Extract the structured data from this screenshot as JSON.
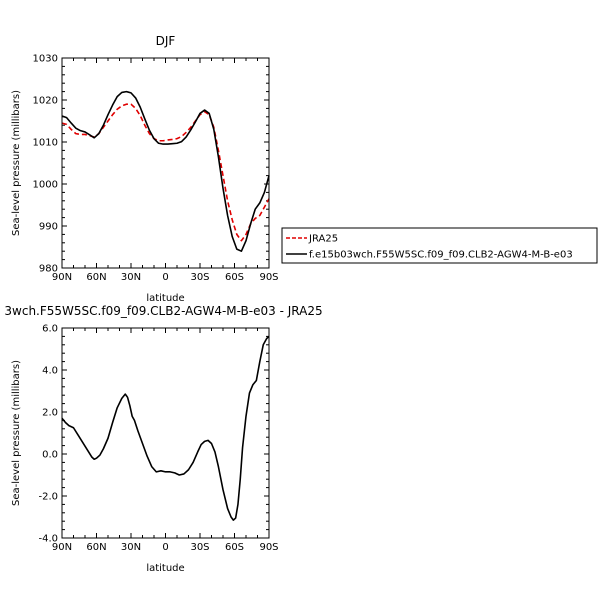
{
  "chart_data": [
    {
      "type": "line",
      "title": "DJF",
      "xlabel": "latitude",
      "ylabel": "Sea-level pressure (millibars)",
      "xlim": [
        90,
        -90
      ],
      "ylim": [
        980,
        1030
      ],
      "x_ticks": [
        {
          "value": 90,
          "label": "90N"
        },
        {
          "value": 60,
          "label": "60N"
        },
        {
          "value": 30,
          "label": "30N"
        },
        {
          "value": 0,
          "label": "0"
        },
        {
          "value": -30,
          "label": "30S"
        },
        {
          "value": -60,
          "label": "60S"
        },
        {
          "value": -90,
          "label": "90S"
        }
      ],
      "y_ticks": [
        {
          "value": 980,
          "label": "980"
        },
        {
          "value": 990,
          "label": "990"
        },
        {
          "value": 1000,
          "label": "1000"
        },
        {
          "value": 1010,
          "label": "1010"
        },
        {
          "value": 1020,
          "label": "1020"
        },
        {
          "value": 1030,
          "label": "1030"
        }
      ],
      "legend_position": "right",
      "series": [
        {
          "name": "JRA25",
          "color": "#e00000",
          "dash": "dashed",
          "x": [
            90,
            86,
            82,
            78,
            74,
            70,
            66,
            62,
            58,
            54,
            50,
            46,
            42,
            38,
            34,
            30,
            26,
            22,
            18,
            14,
            10,
            6,
            2,
            -2,
            -6,
            -10,
            -14,
            -18,
            -22,
            -26,
            -30,
            -34,
            -38,
            -42,
            -46,
            -50,
            -54,
            -58,
            -62,
            -66,
            -70,
            -74,
            -78,
            -82,
            -86,
            -90
          ],
          "y": [
            1014.5,
            1014.2,
            1013.0,
            1012.0,
            1011.8,
            1011.8,
            1011.5,
            1011.2,
            1012.0,
            1013.5,
            1015.0,
            1016.5,
            1017.8,
            1018.6,
            1019.0,
            1019.0,
            1018.0,
            1016.3,
            1014.0,
            1012.0,
            1010.8,
            1010.3,
            1010.3,
            1010.5,
            1010.6,
            1010.8,
            1011.3,
            1012.3,
            1013.5,
            1015.0,
            1016.5,
            1017.2,
            1016.5,
            1013.5,
            1008.0,
            1002.0,
            996.0,
            991.5,
            988.0,
            986.5,
            988.0,
            990.5,
            991.8,
            992.5,
            994.5,
            996.5
          ]
        },
        {
          "name": "f.e15b03wch.F55W5SC.f09_f09.CLB2-AGW4-M-B-e03",
          "color": "#000000",
          "dash": "solid",
          "x": [
            90,
            86,
            82,
            78,
            74,
            70,
            66,
            62,
            58,
            54,
            50,
            46,
            42,
            38,
            34,
            30,
            26,
            22,
            18,
            14,
            10,
            6,
            2,
            -2,
            -6,
            -10,
            -14,
            -18,
            -22,
            -26,
            -30,
            -34,
            -38,
            -42,
            -46,
            -50,
            -54,
            -58,
            -62,
            -66,
            -70,
            -74,
            -78,
            -82,
            -86,
            -90
          ],
          "y": [
            1016.2,
            1015.8,
            1014.5,
            1013.3,
            1012.7,
            1012.4,
            1011.7,
            1011.0,
            1012.0,
            1014.0,
            1016.5,
            1018.8,
            1020.8,
            1021.8,
            1022.0,
            1021.7,
            1020.5,
            1018.3,
            1015.5,
            1012.8,
            1010.8,
            1009.7,
            1009.5,
            1009.5,
            1009.6,
            1009.7,
            1010.1,
            1011.2,
            1012.9,
            1014.8,
            1016.8,
            1017.6,
            1016.8,
            1013.0,
            1006.5,
            999.0,
            992.5,
            987.5,
            984.5,
            984.0,
            986.5,
            990.5,
            994.0,
            995.5,
            998.0,
            1002.0
          ]
        }
      ]
    },
    {
      "type": "line",
      "title": "3wch.F55W5SC.f09_f09.CLB2-AGW4-M-B-e03 - JRA25",
      "xlabel": "latitude",
      "ylabel": "Sea-level pressure (millibars)",
      "xlim": [
        90,
        -90
      ],
      "ylim": [
        -4,
        6
      ],
      "x_ticks": [
        {
          "value": 90,
          "label": "90N"
        },
        {
          "value": 60,
          "label": "60N"
        },
        {
          "value": 30,
          "label": "30N"
        },
        {
          "value": 0,
          "label": "0"
        },
        {
          "value": -30,
          "label": "30S"
        },
        {
          "value": -60,
          "label": "60S"
        },
        {
          "value": -90,
          "label": "90S"
        }
      ],
      "y_ticks": [
        {
          "value": -4,
          "label": "-4.0"
        },
        {
          "value": -2,
          "label": "-2.0"
        },
        {
          "value": 0,
          "label": "0.0"
        },
        {
          "value": 2,
          "label": "2.0"
        },
        {
          "value": 4,
          "label": "4.0"
        },
        {
          "value": 6,
          "label": "6.0"
        }
      ],
      "series": [
        {
          "color": "#000000",
          "dash": "solid",
          "x": [
            90,
            87,
            84,
            80,
            76,
            72,
            68,
            64,
            62,
            60,
            57,
            54,
            50,
            46,
            42,
            38,
            35,
            33,
            31,
            29,
            27,
            24,
            20,
            16,
            12,
            8,
            4,
            0,
            -4,
            -8,
            -12,
            -16,
            -20,
            -24,
            -28,
            -31,
            -34,
            -37,
            -40,
            -43,
            -46,
            -50,
            -54,
            -57,
            -59,
            -61,
            -63,
            -65,
            -67,
            -70,
            -73,
            -76,
            -79,
            -82,
            -85,
            -88,
            -90
          ],
          "y": [
            1.7,
            1.5,
            1.35,
            1.25,
            0.9,
            0.55,
            0.2,
            -0.15,
            -0.25,
            -0.2,
            -0.05,
            0.25,
            0.75,
            1.5,
            2.2,
            2.65,
            2.85,
            2.7,
            2.3,
            1.8,
            1.6,
            1.1,
            0.5,
            -0.1,
            -0.6,
            -0.85,
            -0.8,
            -0.85,
            -0.85,
            -0.9,
            -1.0,
            -0.95,
            -0.75,
            -0.4,
            0.1,
            0.45,
            0.6,
            0.65,
            0.5,
            0.1,
            -0.6,
            -1.7,
            -2.6,
            -3.0,
            -3.15,
            -3.05,
            -2.4,
            -1.2,
            0.3,
            1.8,
            2.9,
            3.3,
            3.5,
            4.4,
            5.2,
            5.5,
            5.6
          ]
        }
      ]
    }
  ]
}
